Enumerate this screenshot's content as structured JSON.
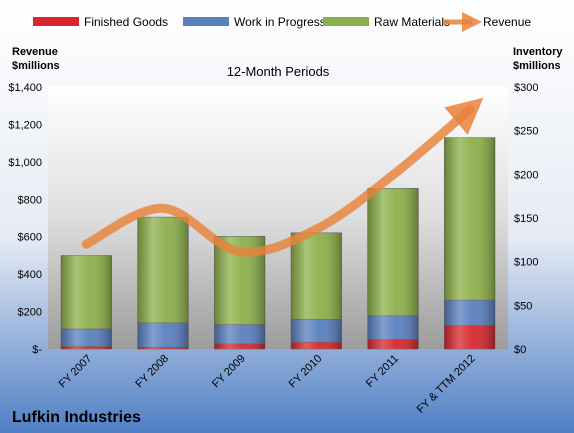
{
  "chart_data": {
    "type": "bar",
    "stacked": true,
    "subtitle": "12-Month Periods",
    "company": "Lufkin Industries",
    "categories": [
      "FY 2007",
      "FY 2008",
      "FY 2009",
      "FY 2010",
      "FY 2011",
      "FY & TTM 2012"
    ],
    "series": [
      {
        "name": "Finished Goods",
        "axis": "right",
        "color": "#d8262c",
        "values": [
          3,
          2,
          6,
          8,
          11,
          27
        ]
      },
      {
        "name": "Work in Progress",
        "axis": "right",
        "color": "#5a7fbf",
        "values": [
          20,
          28,
          22,
          26,
          27,
          29
        ]
      },
      {
        "name": "Raw Materials",
        "axis": "right",
        "color": "#8cb04a",
        "values": [
          84,
          121,
          101,
          99,
          146,
          186
        ]
      },
      {
        "name": "Revenue",
        "axis": "left",
        "type": "line",
        "color": "#e8823a",
        "values": [
          560,
          752,
          520,
          640,
          930,
          1280
        ]
      }
    ],
    "left_axis": {
      "label_line1": "Revenue",
      "label_line2": "$millions",
      "min": 0,
      "max": 1400,
      "step": 200,
      "tick_labels": [
        "$-",
        "$200",
        "$400",
        "$600",
        "$800",
        "$1,000",
        "$1,200",
        "$1,400"
      ]
    },
    "right_axis": {
      "label_line1": "Inventory",
      "label_line2": "$millions",
      "min": 0,
      "max": 300,
      "step": 50,
      "tick_labels": [
        "$0",
        "$50",
        "$100",
        "$150",
        "$200",
        "$250",
        "$300"
      ]
    },
    "legend_position": "top"
  }
}
